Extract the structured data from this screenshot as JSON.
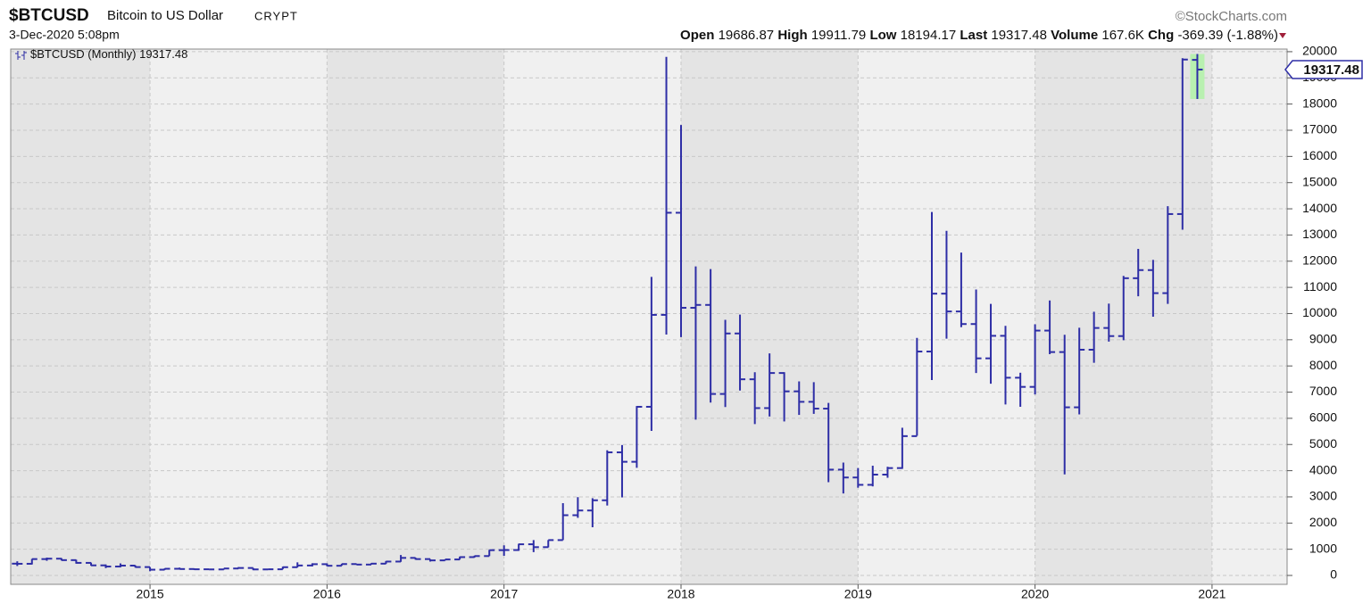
{
  "chart_data": {
    "type": "ohlc",
    "symbol": "$BTCUSD",
    "name": "Bitcoin to US Dollar",
    "exchange": "CRYPT",
    "date": "3-Dec-2020 5:08pm",
    "credit": "©StockCharts.com",
    "legend": "$BTCUSD (Monthly)",
    "stat_labels": {
      "open": "Open",
      "high": "High",
      "low": "Low",
      "last": "Last",
      "volume": "Volume",
      "chg": "Chg"
    },
    "volume": "167.6K",
    "chg": "-369.39 (-1.88%)",
    "color": "#2e2ea6",
    "grid": true,
    "xlim": [
      2014.213,
      2021.424
    ],
    "xticks": [
      2015,
      2016,
      2017,
      2018,
      2019,
      2020,
      2021
    ],
    "ylim": [
      -340,
      20100
    ],
    "yticks": [
      0,
      1000,
      2000,
      3000,
      4000,
      5000,
      6000,
      7000,
      8000,
      9000,
      10000,
      11000,
      12000,
      13000,
      14000,
      15000,
      16000,
      17000,
      18000,
      19000,
      20000
    ],
    "x": [
      2014.25,
      2014.333,
      2014.417,
      2014.5,
      2014.583,
      2014.667,
      2014.75,
      2014.833,
      2014.917,
      2015,
      2015.083,
      2015.167,
      2015.25,
      2015.333,
      2015.417,
      2015.5,
      2015.583,
      2015.667,
      2015.75,
      2015.833,
      2015.917,
      2016,
      2016.083,
      2016.167,
      2016.25,
      2016.333,
      2016.417,
      2016.5,
      2016.583,
      2016.667,
      2016.75,
      2016.833,
      2016.917,
      2017,
      2017.083,
      2017.167,
      2017.25,
      2017.333,
      2017.417,
      2017.5,
      2017.583,
      2017.667,
      2017.75,
      2017.833,
      2017.917,
      2018,
      2018.083,
      2018.167,
      2018.25,
      2018.333,
      2018.417,
      2018.5,
      2018.583,
      2018.667,
      2018.75,
      2018.833,
      2018.917,
      2019,
      2019.083,
      2019.167,
      2019.25,
      2019.333,
      2019.417,
      2019.5,
      2019.583,
      2019.667,
      2019.75,
      2019.833,
      2019.917,
      2020,
      2020.083,
      2020.167,
      2020.25,
      2020.333,
      2020.417,
      2020.5,
      2020.583,
      2020.667,
      2020.75,
      2020.833,
      2020.917
    ],
    "open": [
      450,
      445,
      625,
      640,
      585,
      480,
      385,
      340,
      375,
      320,
      220,
      255,
      245,
      235,
      230,
      265,
      285,
      230,
      235,
      315,
      380,
      430,
      370,
      435,
      415,
      450,
      530,
      670,
      625,
      575,
      610,
      700,
      740,
      965,
      970,
      1190,
      1080,
      1350,
      2300,
      2480,
      2870,
      4700,
      4340,
      6440,
      9950,
      13850,
      10220,
      10330,
      6930,
      9240,
      7490,
      6390,
      7730,
      7030,
      6630,
      6370,
      4040,
      3740,
      3460,
      3850,
      4100,
      5320,
      8550,
      10760,
      10080,
      9600,
      8290,
      9150,
      7550,
      7200,
      9350,
      8530,
      6420,
      8620,
      9450,
      9140,
      11350,
      11660,
      10780,
      13800,
      19686.87
    ],
    "high": [
      540,
      630,
      680,
      660,
      600,
      490,
      420,
      460,
      385,
      320,
      270,
      300,
      265,
      245,
      265,
      320,
      285,
      245,
      335,
      500,
      465,
      460,
      445,
      440,
      470,
      550,
      780,
      680,
      625,
      615,
      720,
      755,
      975,
      1150,
      1210,
      1350,
      1350,
      2760,
      2990,
      2950,
      4780,
      4980,
      6470,
      11400,
      19800,
      17200,
      11800,
      11700,
      9760,
      9960,
      7760,
      8480,
      7760,
      7410,
      7380,
      6590,
      4310,
      4100,
      4190,
      4150,
      5640,
      9070,
      13880,
      13160,
      12330,
      10920,
      10370,
      9530,
      7740,
      9590,
      10500,
      9190,
      9460,
      10070,
      10380,
      11440,
      12470,
      12050,
      14100,
      19750,
      19911.79
    ],
    "low": [
      360,
      420,
      560,
      570,
      450,
      370,
      280,
      310,
      300,
      160,
      210,
      235,
      210,
      225,
      220,
      255,
      200,
      225,
      235,
      305,
      345,
      350,
      370,
      405,
      415,
      440,
      520,
      600,
      530,
      570,
      605,
      680,
      740,
      750,
      940,
      890,
      1070,
      1350,
      2200,
      1840,
      2670,
      2980,
      4110,
      5520,
      9200,
      9100,
      5950,
      6600,
      6430,
      7060,
      5780,
      6070,
      5880,
      6130,
      6170,
      3560,
      3130,
      3350,
      3400,
      3730,
      4070,
      5330,
      7460,
      9040,
      9480,
      7730,
      7320,
      6530,
      6440,
      6910,
      8450,
      3860,
      6150,
      8120,
      8930,
      8980,
      10660,
      9880,
      10370,
      13200,
      18194.17
    ],
    "close": [
      445,
      625,
      640,
      585,
      480,
      385,
      340,
      375,
      320,
      220,
      255,
      245,
      235,
      230,
      265,
      285,
      230,
      235,
      315,
      380,
      430,
      370,
      435,
      415,
      450,
      530,
      670,
      625,
      575,
      610,
      700,
      740,
      965,
      970,
      1190,
      1080,
      1350,
      2300,
      2480,
      2870,
      4700,
      4340,
      6440,
      9950,
      13850,
      10220,
      10330,
      6930,
      9240,
      7490,
      6390,
      7730,
      7030,
      6630,
      6370,
      4040,
      3740,
      3460,
      3850,
      4100,
      5320,
      8550,
      10760,
      10080,
      9600,
      8290,
      9150,
      7550,
      7200,
      9350,
      8530,
      6420,
      8620,
      9450,
      9140,
      11350,
      11660,
      10780,
      13800,
      19700,
      19317.48
    ]
  }
}
